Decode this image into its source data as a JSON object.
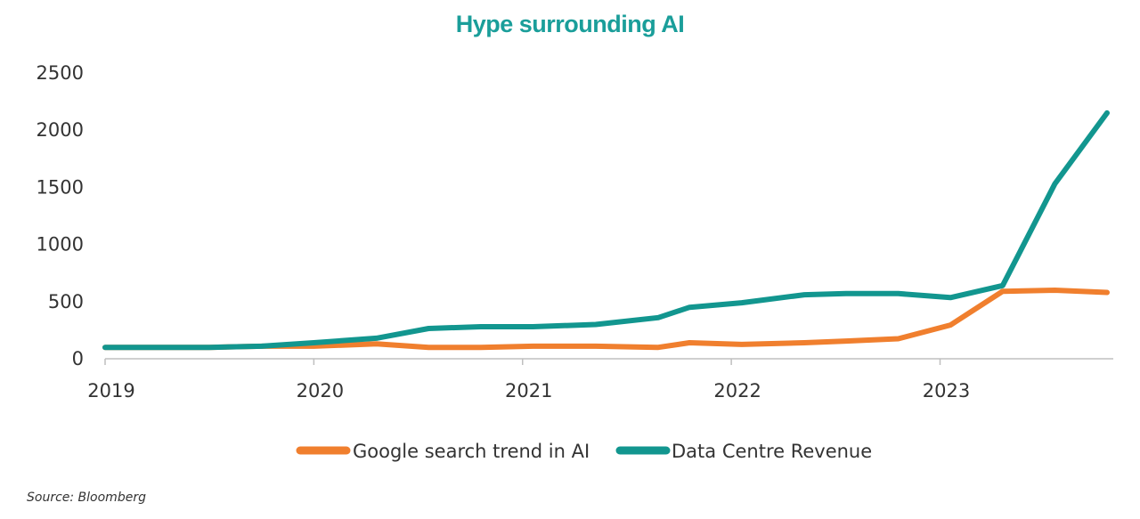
{
  "chart_data": {
    "type": "line",
    "title": "Hype surrounding AI",
    "xlabel": "",
    "ylabel": "",
    "ylim": [
      0,
      2500
    ],
    "yticks": [
      0,
      500,
      1000,
      1500,
      2000,
      2500
    ],
    "xlim": [
      2019,
      2023.8
    ],
    "xticks": [
      2019,
      2020,
      2021,
      2022,
      2023
    ],
    "grid": false,
    "legend_position": "bottom",
    "series": [
      {
        "name": "Google search trend in AI",
        "color": "#f07f2e",
        "x": [
          2019,
          2019.25,
          2019.5,
          2019.75,
          2020,
          2020.3,
          2020.55,
          2020.8,
          2021.05,
          2021.35,
          2021.65,
          2021.8,
          2022.05,
          2022.35,
          2022.55,
          2022.8,
          2023.05,
          2023.3,
          2023.55,
          2023.8
        ],
        "values": [
          100,
          100,
          100,
          110,
          110,
          130,
          100,
          100,
          110,
          110,
          100,
          140,
          125,
          140,
          155,
          175,
          295,
          590,
          600,
          580
        ]
      },
      {
        "name": "Data Centre Revenue",
        "color": "#12968f",
        "x": [
          2019,
          2019.25,
          2019.5,
          2019.75,
          2020,
          2020.3,
          2020.55,
          2020.8,
          2021.05,
          2021.35,
          2021.65,
          2021.8,
          2022.05,
          2022.35,
          2022.55,
          2022.8,
          2023.05,
          2023.3,
          2023.55,
          2023.8
        ],
        "values": [
          100,
          100,
          100,
          110,
          140,
          180,
          265,
          280,
          280,
          300,
          360,
          450,
          490,
          560,
          570,
          570,
          535,
          640,
          1530,
          2150
        ]
      }
    ]
  },
  "source": "Source: Bloomberg"
}
